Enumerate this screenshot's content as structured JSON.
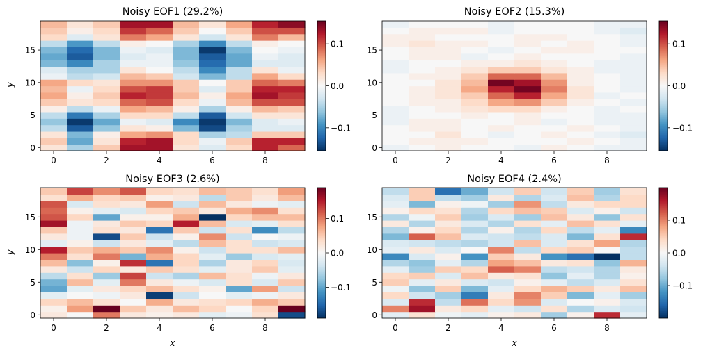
{
  "figure": {
    "colormap": "RdBu_r",
    "colormap_stops": [
      "#053061",
      "#2166ac",
      "#4393c3",
      "#92c5de",
      "#d1e5f0",
      "#f7f7f7",
      "#fddbc7",
      "#f4a582",
      "#d6604d",
      "#b2182b",
      "#67001f"
    ]
  },
  "chart_data": [
    {
      "type": "heatmap",
      "title": "Noisy EOF1 (29.2%)",
      "xlabel": "",
      "ylabel": "y",
      "x_ticks": [
        "0",
        "2",
        "4",
        "6",
        "8"
      ],
      "y_ticks": [
        "0",
        "5",
        "10",
        "15"
      ],
      "colorbar_ticks": [
        "0.1",
        "0.0",
        "−0.1"
      ],
      "colorbar_tick_values": [
        0.1,
        0.0,
        -0.1
      ],
      "vmin": -0.155,
      "vmax": 0.155,
      "grid": false,
      "rows": [
        [
          0.02,
          -0.05,
          0.04,
          0.13,
          0.13,
          0.02,
          -0.02,
          0.03,
          0.12,
          0.09
        ],
        [
          0.04,
          -0.08,
          0.02,
          0.12,
          0.13,
          0.03,
          -0.01,
          0.04,
          0.12,
          0.12
        ],
        [
          0.02,
          -0.07,
          0.01,
          0.06,
          0.07,
          0.03,
          -0.05,
          -0.04,
          0.04,
          0.04
        ],
        [
          -0.04,
          -0.13,
          -0.06,
          0.02,
          0.01,
          -0.07,
          -0.14,
          -0.05,
          -0.02,
          -0.02
        ],
        [
          -0.06,
          -0.15,
          -0.08,
          -0.01,
          -0.02,
          -0.1,
          -0.15,
          -0.07,
          -0.02,
          -0.01
        ],
        [
          -0.04,
          -0.11,
          -0.05,
          0.03,
          0.03,
          -0.04,
          -0.13,
          -0.03,
          0.02,
          0.02
        ],
        [
          0.01,
          -0.04,
          -0.01,
          0.06,
          0.05,
          0.01,
          -0.05,
          0.01,
          0.05,
          0.04
        ],
        [
          0.04,
          0.02,
          0.03,
          0.09,
          0.1,
          0.03,
          -0.01,
          0.05,
          0.1,
          0.1
        ],
        [
          0.06,
          0.01,
          0.04,
          0.12,
          0.11,
          0.05,
          0.01,
          0.06,
          0.13,
          0.11
        ],
        [
          0.05,
          -0.01,
          0.03,
          0.1,
          0.11,
          0.04,
          -0.02,
          0.04,
          0.12,
          0.12
        ],
        [
          0.06,
          0.03,
          0.02,
          0.07,
          0.07,
          0.04,
          0.0,
          0.04,
          0.09,
          0.08
        ],
        [
          -0.01,
          -0.04,
          -0.03,
          0.05,
          0.04,
          -0.03,
          -0.07,
          -0.04,
          0.06,
          0.03
        ],
        [
          -0.02,
          -0.05,
          -0.05,
          0.02,
          0.0,
          -0.04,
          -0.1,
          -0.04,
          0.02,
          -0.01
        ],
        [
          -0.07,
          -0.1,
          -0.05,
          -0.01,
          -0.01,
          -0.06,
          -0.12,
          -0.08,
          -0.02,
          -0.02
        ],
        [
          -0.08,
          -0.13,
          -0.07,
          -0.02,
          -0.01,
          -0.07,
          -0.13,
          -0.08,
          -0.01,
          -0.02
        ],
        [
          -0.07,
          -0.12,
          -0.07,
          -0.01,
          -0.02,
          -0.07,
          -0.15,
          -0.07,
          0.0,
          -0.01
        ],
        [
          -0.04,
          -0.09,
          -0.04,
          0.01,
          0.0,
          -0.05,
          -0.1,
          -0.04,
          0.01,
          0.0
        ],
        [
          0.03,
          -0.02,
          0.02,
          0.08,
          0.06,
          0.02,
          -0.03,
          0.02,
          0.08,
          0.05
        ],
        [
          0.04,
          0.01,
          0.03,
          0.11,
          0.09,
          0.04,
          0.0,
          0.04,
          0.1,
          0.1
        ],
        [
          0.05,
          0.02,
          0.04,
          0.13,
          0.13,
          0.05,
          0.02,
          0.06,
          0.12,
          0.14
        ]
      ]
    },
    {
      "type": "heatmap",
      "title": "Noisy EOF2 (15.3%)",
      "xlabel": "",
      "ylabel": "",
      "x_ticks": [
        "0",
        "2",
        "4",
        "6",
        "8"
      ],
      "y_ticks": [
        "0",
        "5",
        "10",
        "15"
      ],
      "colorbar_ticks": [
        "0.1",
        "0.0",
        "−0.1"
      ],
      "colorbar_tick_values": [
        0.1,
        0.0,
        -0.1
      ],
      "vmin": -0.155,
      "vmax": 0.155,
      "grid": false,
      "rows": [
        [
          -0.01,
          0.0,
          0.01,
          0.0,
          0.0,
          -0.01,
          0.01,
          0.0,
          -0.01,
          -0.01
        ],
        [
          0.0,
          0.01,
          0.01,
          0.01,
          0.0,
          0.0,
          0.0,
          0.01,
          0.0,
          -0.01
        ],
        [
          0.0,
          0.0,
          0.02,
          0.0,
          -0.01,
          0.0,
          0.01,
          0.0,
          -0.01,
          -0.02
        ],
        [
          0.0,
          0.01,
          0.01,
          0.0,
          0.01,
          0.0,
          0.0,
          0.01,
          0.0,
          -0.01
        ],
        [
          -0.01,
          0.01,
          0.01,
          0.0,
          0.0,
          0.01,
          -0.01,
          0.0,
          -0.01,
          -0.01
        ],
        [
          -0.01,
          0.0,
          0.0,
          0.01,
          0.0,
          0.01,
          0.0,
          0.0,
          -0.01,
          -0.01
        ],
        [
          -0.01,
          0.0,
          0.01,
          0.02,
          0.03,
          0.03,
          0.01,
          0.0,
          -0.01,
          0.0
        ],
        [
          0.0,
          0.01,
          0.01,
          0.03,
          0.06,
          0.07,
          0.04,
          0.01,
          0.0,
          -0.01
        ],
        [
          0.0,
          0.01,
          0.02,
          0.04,
          0.09,
          0.12,
          0.06,
          0.02,
          -0.01,
          0.0
        ],
        [
          0.0,
          0.01,
          0.02,
          0.06,
          0.12,
          0.15,
          0.08,
          0.02,
          0.0,
          -0.01
        ],
        [
          0.0,
          0.0,
          0.02,
          0.05,
          0.15,
          0.13,
          0.07,
          0.01,
          0.0,
          -0.01
        ],
        [
          0.0,
          0.01,
          0.01,
          0.04,
          0.09,
          0.09,
          0.05,
          0.01,
          0.0,
          -0.01
        ],
        [
          -0.01,
          0.0,
          0.01,
          0.02,
          0.04,
          0.04,
          0.02,
          0.01,
          -0.01,
          -0.01
        ],
        [
          -0.01,
          0.0,
          0.0,
          0.01,
          0.01,
          0.02,
          0.01,
          0.0,
          -0.01,
          -0.01
        ],
        [
          0.0,
          0.01,
          0.01,
          -0.01,
          0.0,
          0.01,
          0.0,
          0.0,
          0.0,
          -0.01
        ],
        [
          0.0,
          0.01,
          0.01,
          0.0,
          -0.01,
          0.0,
          0.01,
          0.01,
          0.0,
          0.0
        ],
        [
          0.01,
          0.02,
          0.01,
          0.01,
          0.0,
          0.01,
          0.0,
          0.01,
          0.0,
          -0.01
        ],
        [
          0.01,
          0.01,
          0.0,
          0.0,
          0.0,
          0.01,
          0.01,
          0.0,
          0.0,
          -0.01
        ],
        [
          0.0,
          0.01,
          0.01,
          0.01,
          -0.01,
          0.0,
          0.0,
          0.0,
          -0.01,
          -0.02
        ],
        [
          -0.01,
          0.0,
          0.0,
          0.0,
          -0.01,
          0.0,
          0.0,
          0.0,
          -0.01,
          -0.01
        ]
      ]
    },
    {
      "type": "heatmap",
      "title": "Noisy EOF3 (2.6%)",
      "xlabel": "x",
      "ylabel": "y",
      "x_ticks": [
        "0",
        "2",
        "4",
        "6",
        "8"
      ],
      "y_ticks": [
        "0",
        "5",
        "10",
        "15"
      ],
      "colorbar_ticks": [
        "0.1",
        "0.0",
        "−0.1"
      ],
      "colorbar_tick_values": [
        0.1,
        0.0,
        -0.1
      ],
      "vmin": -0.19,
      "vmax": 0.19,
      "grid": false,
      "rows": [
        [
          0.02,
          0.0,
          0.1,
          0.02,
          0.01,
          0.02,
          -0.02,
          -0.01,
          0.03,
          -0.17
        ],
        [
          0.01,
          0.08,
          0.19,
          0.05,
          0.02,
          0.06,
          0.04,
          0.0,
          0.04,
          0.19
        ],
        [
          0.04,
          0.06,
          0.03,
          0.0,
          0.07,
          0.02,
          0.03,
          0.04,
          0.07,
          0.05
        ],
        [
          -0.02,
          0.0,
          -0.01,
          0.02,
          -0.18,
          -0.04,
          0.0,
          -0.02,
          -0.01,
          0.02
        ],
        [
          -0.1,
          -0.02,
          0.02,
          0.04,
          0.06,
          0.03,
          0.01,
          -0.1,
          0.08,
          -0.04
        ],
        [
          -0.09,
          0.06,
          -0.02,
          0.1,
          0.02,
          -0.01,
          -0.03,
          0.03,
          -0.03,
          0.05
        ],
        [
          -0.05,
          0.03,
          -0.07,
          0.13,
          -0.04,
          -0.06,
          0.06,
          0.03,
          -0.01,
          0.02
        ],
        [
          0.02,
          -0.04,
          0.04,
          0.02,
          0.05,
          0.03,
          -0.02,
          0.02,
          0.05,
          -0.02
        ],
        [
          0.06,
          -0.08,
          0.01,
          0.14,
          -0.14,
          0.04,
          -0.06,
          0.02,
          0.04,
          -0.03
        ],
        [
          0.1,
          0.03,
          0.1,
          -0.09,
          0.07,
          0.04,
          -0.02,
          -0.07,
          -0.03,
          -0.02
        ],
        [
          0.15,
          0.05,
          0.07,
          0.05,
          0.09,
          0.01,
          -0.04,
          0.03,
          0.03,
          0.06
        ],
        [
          -0.02,
          0.01,
          -0.04,
          0.02,
          -0.02,
          -0.05,
          0.06,
          0.03,
          -0.04,
          -0.03
        ],
        [
          0.02,
          -0.01,
          -0.17,
          0.05,
          -0.04,
          0.01,
          0.09,
          -0.04,
          0.0,
          -0.01
        ],
        [
          0.05,
          -0.01,
          0.03,
          0.02,
          -0.14,
          0.05,
          -0.04,
          0.03,
          -0.12,
          -0.05
        ],
        [
          0.16,
          -0.01,
          0.02,
          0.05,
          0.04,
          0.15,
          0.06,
          -0.03,
          -0.02,
          0.03
        ],
        [
          0.12,
          0.04,
          -0.1,
          0.01,
          0.01,
          0.07,
          -0.19,
          0.04,
          0.06,
          0.06
        ],
        [
          0.11,
          0.01,
          -0.02,
          -0.03,
          0.04,
          0.05,
          0.02,
          0.07,
          0.09,
          0.03
        ],
        [
          0.12,
          -0.03,
          0.03,
          0.02,
          0.08,
          -0.04,
          0.06,
          0.02,
          -0.01,
          -0.02
        ],
        [
          0.03,
          0.07,
          0.04,
          0.05,
          0.01,
          0.02,
          -0.05,
          0.05,
          0.02,
          0.06
        ],
        [
          0.05,
          0.13,
          0.09,
          0.12,
          0.04,
          0.03,
          0.06,
          0.05,
          0.03,
          0.08
        ]
      ]
    },
    {
      "type": "heatmap",
      "title": "Noisy EOF4 (2.4%)",
      "xlabel": "x",
      "ylabel": "",
      "x_ticks": [
        "0",
        "2",
        "4",
        "6",
        "8"
      ],
      "y_ticks": [
        "0",
        "5",
        "10",
        "15"
      ],
      "colorbar_ticks": [
        "0.1",
        "0.0",
        "−0.1"
      ],
      "colorbar_tick_values": [
        0.1,
        0.0,
        -0.1
      ],
      "vmin": -0.2,
      "vmax": 0.2,
      "grid": false,
      "rows": [
        [
          -0.02,
          0.03,
          -0.01,
          -0.02,
          0.01,
          0.02,
          -0.07,
          0.01,
          0.15,
          -0.02
        ],
        [
          0.1,
          0.17,
          0.02,
          0.04,
          -0.02,
          -0.04,
          0.03,
          -0.06,
          -0.03,
          -0.04
        ],
        [
          -0.03,
          0.15,
          -0.05,
          0.11,
          0.04,
          0.09,
          -0.03,
          0.0,
          0.01,
          -0.03
        ],
        [
          0.04,
          -0.04,
          -0.07,
          -0.14,
          0.02,
          0.1,
          0.05,
          -0.09,
          -0.02,
          -0.07
        ],
        [
          -0.01,
          -0.08,
          0.05,
          -0.09,
          -0.02,
          0.04,
          0.07,
          0.05,
          0.02,
          0.06
        ],
        [
          0.05,
          -0.02,
          0.02,
          -0.03,
          -0.04,
          0.01,
          -0.02,
          -0.05,
          -0.03,
          0.03
        ],
        [
          0.04,
          0.05,
          -0.03,
          0.06,
          0.02,
          0.03,
          -0.08,
          -0.02,
          -0.06,
          0.01
        ],
        [
          -0.02,
          -0.07,
          0.05,
          0.04,
          0.12,
          0.1,
          -0.05,
          -0.04,
          -0.06,
          0.02
        ],
        [
          -0.06,
          -0.08,
          -0.02,
          -0.06,
          0.08,
          0.06,
          0.02,
          0.03,
          -0.08,
          0.07
        ],
        [
          -0.13,
          -0.03,
          0.01,
          -0.12,
          0.05,
          0.02,
          -0.12,
          -0.15,
          -0.2,
          -0.05
        ],
        [
          -0.02,
          0.02,
          -0.03,
          0.0,
          0.1,
          -0.05,
          0.04,
          0.05,
          0.0,
          -0.05
        ],
        [
          -0.03,
          -0.04,
          -0.05,
          -0.06,
          -0.04,
          0.06,
          -0.03,
          0.03,
          0.08,
          -0.06
        ],
        [
          -0.09,
          0.12,
          0.06,
          -0.03,
          -0.04,
          -0.05,
          -0.03,
          -0.09,
          0.03,
          0.15
        ],
        [
          -0.06,
          0.01,
          0.04,
          -0.06,
          0.01,
          -0.06,
          0.04,
          -0.05,
          -0.02,
          -0.13
        ],
        [
          0.02,
          -0.06,
          0.02,
          -0.03,
          -0.06,
          0.03,
          -0.02,
          0.06,
          0.03,
          -0.02
        ],
        [
          -0.06,
          -0.01,
          0.05,
          -0.07,
          -0.03,
          -0.07,
          0.06,
          0.02,
          -0.08,
          0.03
        ],
        [
          0.01,
          0.04,
          0.03,
          -0.06,
          0.04,
          0.06,
          0.05,
          -0.03,
          0.01,
          -0.04
        ],
        [
          -0.02,
          -0.09,
          0.01,
          -0.01,
          -0.07,
          0.09,
          -0.05,
          0.02,
          0.04,
          0.04
        ],
        [
          -0.03,
          0.05,
          -0.05,
          -0.07,
          0.02,
          -0.06,
          -0.03,
          0.06,
          -0.06,
          0.04
        ],
        [
          -0.05,
          0.05,
          -0.15,
          -0.1,
          -0.04,
          0.05,
          -0.04,
          0.05,
          -0.07,
          0.03
        ]
      ]
    }
  ]
}
